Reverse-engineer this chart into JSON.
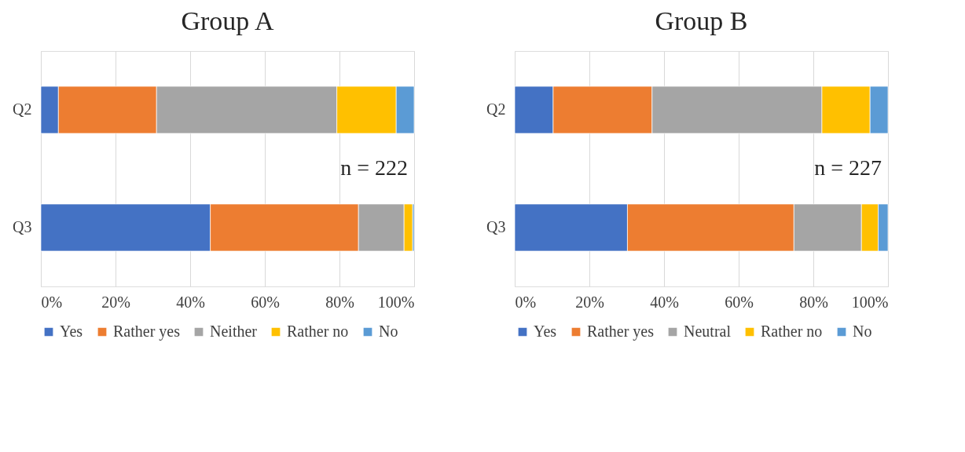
{
  "chart_data": [
    {
      "type": "bar",
      "title": "Group A",
      "orientation": "horizontal",
      "stacked": true,
      "categories": [
        "Q2",
        "Q3"
      ],
      "series": [
        {
          "name": "Yes",
          "color": "#4472c4",
          "values": [
            4.7,
            45.4
          ]
        },
        {
          "name": "Rather yes",
          "color": "#ed7d31",
          "values": [
            26.3,
            39.7
          ]
        },
        {
          "name": "Neither",
          "color": "#a5a5a5",
          "values": [
            48.3,
            12.2
          ]
        },
        {
          "name": "Rather no",
          "color": "#ffc000",
          "values": [
            15.9,
            2.3
          ]
        },
        {
          "name": "No",
          "color": "#5b9bd5",
          "values": [
            4.8,
            0.4
          ]
        }
      ],
      "xlim": [
        0,
        100
      ],
      "xticks": [
        {
          "value": 0,
          "label": "0%"
        },
        {
          "value": 20,
          "label": "20%"
        },
        {
          "value": 40,
          "label": "40%"
        },
        {
          "value": 60,
          "label": "60%"
        },
        {
          "value": 80,
          "label": "80%"
        },
        {
          "value": 100,
          "label": "100%"
        }
      ],
      "grid": "x",
      "legend": "bottom",
      "annotations": [
        "n = 222"
      ]
    },
    {
      "type": "bar",
      "title": "Group B",
      "orientation": "horizontal",
      "stacked": true,
      "categories": [
        "Q2",
        "Q3"
      ],
      "series": [
        {
          "name": "Yes",
          "color": "#4472c4",
          "values": [
            10.3,
            30.2
          ]
        },
        {
          "name": "Rather yes",
          "color": "#ed7d31",
          "values": [
            26.5,
            44.6
          ]
        },
        {
          "name": "Neutral",
          "color": "#a5a5a5",
          "values": [
            45.5,
            18.1
          ]
        },
        {
          "name": "Rather no",
          "color": "#ffc000",
          "values": [
            12.9,
            4.5
          ]
        },
        {
          "name": "No",
          "color": "#5b9bd5",
          "values": [
            4.8,
            2.6
          ]
        }
      ],
      "xlim": [
        0,
        100
      ],
      "xticks": [
        {
          "value": 0,
          "label": "0%"
        },
        {
          "value": 20,
          "label": "20%"
        },
        {
          "value": 40,
          "label": "40%"
        },
        {
          "value": 60,
          "label": "60%"
        },
        {
          "value": 80,
          "label": "80%"
        },
        {
          "value": 100,
          "label": "100%"
        }
      ],
      "grid": "x",
      "legend": "bottom",
      "annotations": [
        "n = 227"
      ]
    }
  ]
}
